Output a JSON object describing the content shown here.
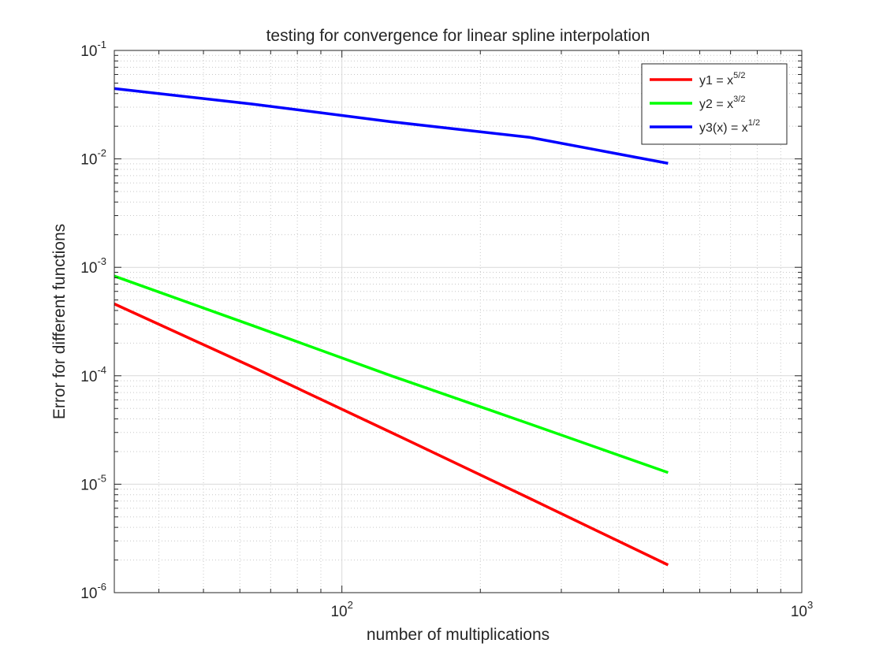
{
  "chart_data": {
    "type": "line",
    "title": "testing for convergence for linear spline interpolation",
    "xlabel": "number of multiplications",
    "ylabel": "Error for different functions",
    "xscale": "log",
    "yscale": "log",
    "xlim": [
      32,
      1000
    ],
    "ylim": [
      1e-06,
      0.1
    ],
    "grid": true,
    "minor_grid": true,
    "legend_location": "top-right",
    "x_ticks": [
      {
        "value": 100,
        "base": "10",
        "exp": "2"
      },
      {
        "value": 1000,
        "base": "10",
        "exp": "3"
      }
    ],
    "y_ticks": [
      {
        "value": 1e-06,
        "base": "10",
        "exp": "-6"
      },
      {
        "value": 1e-05,
        "base": "10",
        "exp": "-5"
      },
      {
        "value": 0.0001,
        "base": "10",
        "exp": "-4"
      },
      {
        "value": 0.001,
        "base": "10",
        "exp": "-3"
      },
      {
        "value": 0.01,
        "base": "10",
        "exp": "-2"
      },
      {
        "value": 0.1,
        "base": "10",
        "exp": "-1"
      }
    ],
    "series": [
      {
        "name": "y1 = x5/2",
        "label_base": "y1 = x",
        "label_exp": "5/2",
        "color": "#ff0000",
        "x": [
          32,
          64,
          128,
          256,
          512
        ],
        "y": [
          0.00046,
          0.00012,
          3e-05,
          7.4e-06,
          1.8e-06
        ]
      },
      {
        "name": "y2 = x3/2",
        "label_base": "y2 = x",
        "label_exp": "3/2",
        "color": "#00ff00",
        "x": [
          32,
          64,
          128,
          256,
          512
        ],
        "y": [
          0.00083,
          0.00029,
          0.0001,
          3.6e-05,
          1.28e-05
        ]
      },
      {
        "name": "y3(x) = x1/2",
        "label_base": "y3(x) = x",
        "label_exp": "1/2",
        "color": "#0000ff",
        "x": [
          32,
          64,
          128,
          256,
          512
        ],
        "y": [
          0.0445,
          0.032,
          0.022,
          0.0158,
          0.0091
        ]
      }
    ]
  }
}
